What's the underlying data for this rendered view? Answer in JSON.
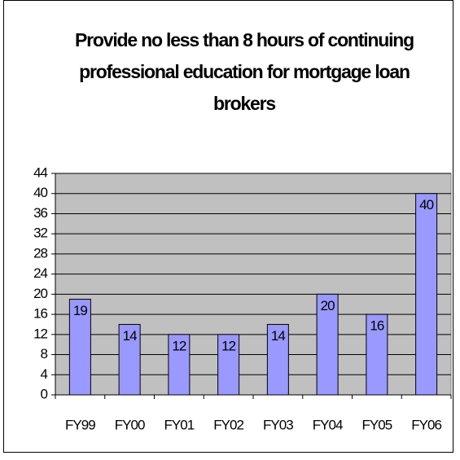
{
  "chart_data": {
    "type": "bar",
    "title": "Provide no less than 8 hours of continuing professional education for mortgage loan brokers",
    "categories": [
      "FY99",
      "FY00",
      "FY01",
      "FY02",
      "FY03",
      "FY04",
      "FY05",
      "FY06"
    ],
    "values": [
      19,
      14,
      12,
      12,
      14,
      20,
      16,
      40
    ],
    "color": "#9999ff",
    "ylim": [
      0,
      44
    ],
    "yticks": [
      0,
      4,
      8,
      12,
      16,
      20,
      24,
      28,
      32,
      36,
      40,
      44
    ],
    "grid": true,
    "plot_background": "#c0c0c0"
  }
}
